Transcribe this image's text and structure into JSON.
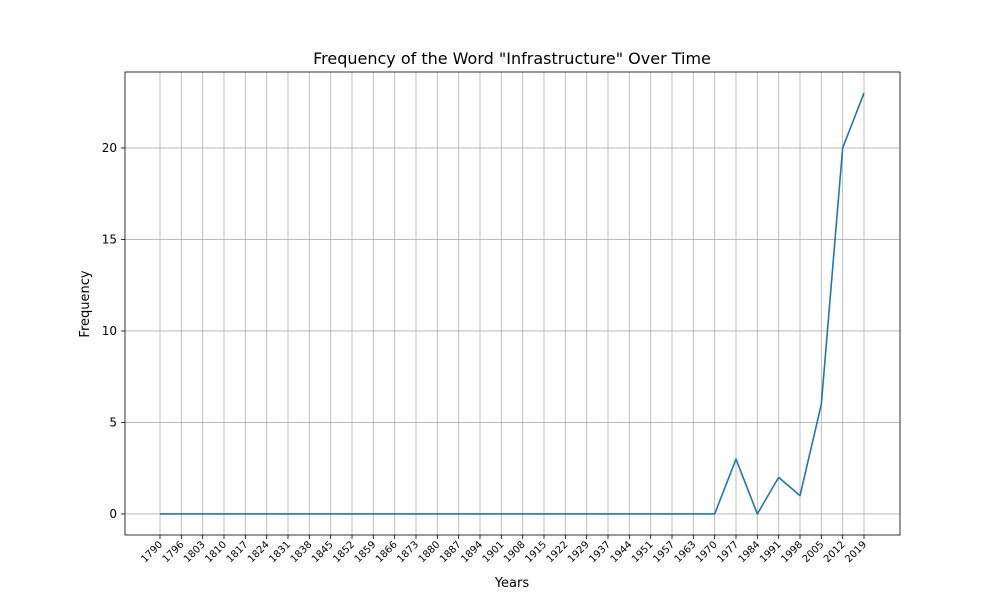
{
  "chart_data": {
    "type": "line",
    "title": "Frequency of the Word \"Infrastructure\" Over Time",
    "xlabel": "Years",
    "ylabel": "Frequency",
    "x": [
      "1790",
      "1796",
      "1803",
      "1810",
      "1817",
      "1824",
      "1831",
      "1838",
      "1845",
      "1852",
      "1859",
      "1866",
      "1873",
      "1880",
      "1887",
      "1894",
      "1901",
      "1908",
      "1915",
      "1922",
      "1929",
      "1937",
      "1944",
      "1951",
      "1957",
      "1963",
      "1970",
      "1977",
      "1984",
      "1991",
      "1998",
      "2005",
      "2012",
      "2019"
    ],
    "series": [
      {
        "values": [
          0,
          0,
          0,
          0,
          0,
          0,
          0,
          0,
          0,
          0,
          0,
          0,
          0,
          0,
          0,
          0,
          0,
          0,
          0,
          0,
          0,
          0,
          0,
          0,
          0,
          0,
          0,
          3,
          0,
          2,
          1,
          6,
          20,
          23
        ],
        "color": "#1f77b4"
      }
    ],
    "yticks": [
      0,
      5,
      10,
      15,
      20
    ],
    "ylim": [
      -1.15,
      24.15
    ],
    "grid": true
  }
}
